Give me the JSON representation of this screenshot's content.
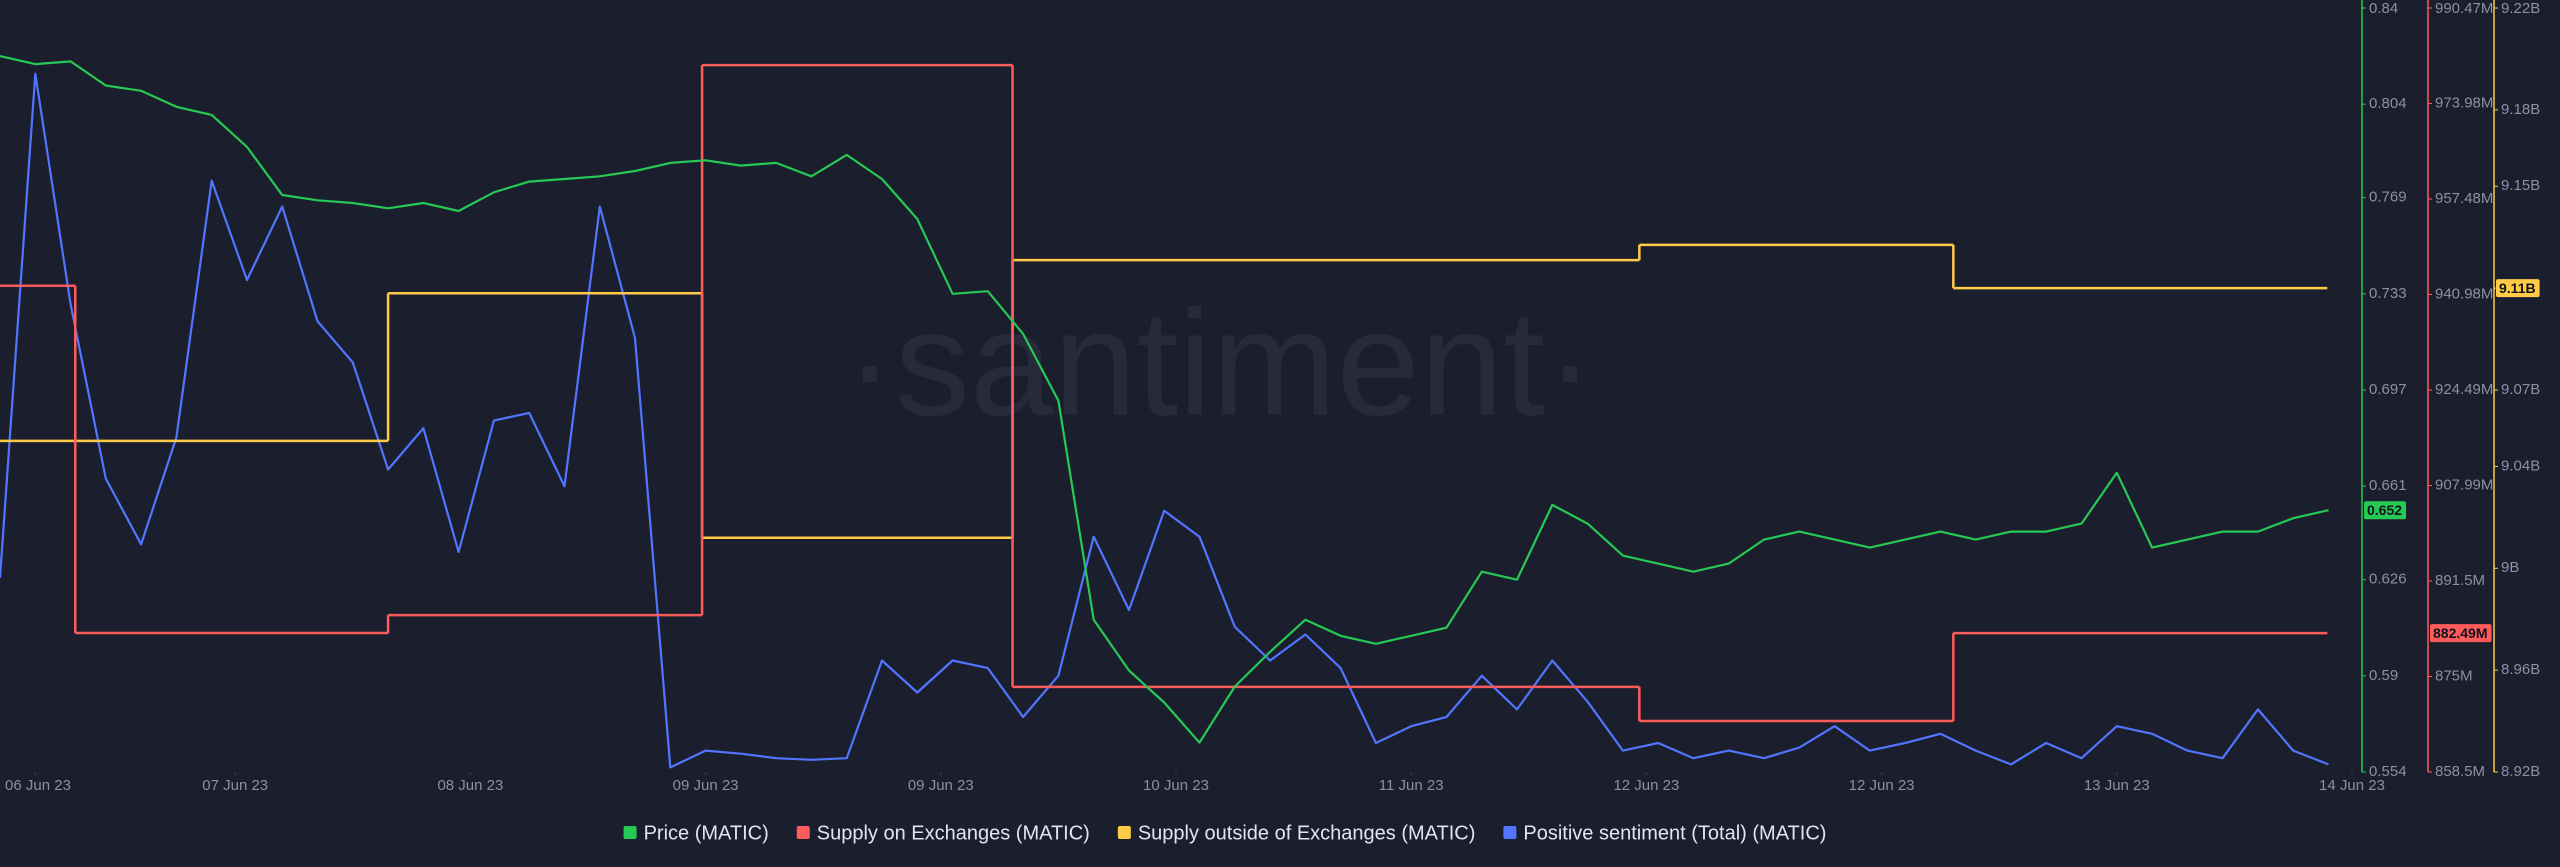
{
  "chart_data": {
    "type": "line",
    "watermark": "·santiment·",
    "xlim": [
      0,
      200
    ],
    "xticks": [
      {
        "value": 3,
        "label": "06 Jun 23"
      },
      {
        "value": 20,
        "label": "07 Jun 23"
      },
      {
        "value": 40,
        "label": "08 Jun 23"
      },
      {
        "value": 60,
        "label": "09 Jun 23"
      },
      {
        "value": 80,
        "label": "09 Jun 23"
      },
      {
        "value": 100,
        "label": "10 Jun 23"
      },
      {
        "value": 120,
        "label": "11 Jun 23"
      },
      {
        "value": 140,
        "label": "12 Jun 23"
      },
      {
        "value": 160,
        "label": "12 Jun 23"
      },
      {
        "value": 180,
        "label": "13 Jun 23"
      },
      {
        "value": 200,
        "label": "14 Jun 23"
      }
    ],
    "x": [
      0,
      3,
      6,
      9,
      12,
      15,
      18,
      21,
      24,
      27,
      30,
      33,
      36,
      39,
      42,
      45,
      48,
      51,
      54,
      57,
      60,
      63,
      66,
      69,
      72,
      75,
      78,
      81,
      84,
      87,
      90,
      93,
      96,
      99,
      102,
      105,
      108,
      111,
      114,
      117,
      120,
      123,
      126,
      129,
      132,
      135,
      138,
      141,
      144,
      147,
      150,
      153,
      156,
      159,
      162,
      165,
      168,
      171,
      174,
      177,
      180,
      183,
      186,
      189,
      192,
      195,
      198
    ],
    "ylim": [
      0.554,
      0.84
    ],
    "yticks": [
      0.554,
      0.59,
      0.626,
      0.661,
      0.697,
      0.733,
      0.769,
      0.804,
      0.84
    ],
    "y2lim": [
      858500000,
      990470000
    ],
    "y2ticks": [
      {
        "value": 858500000,
        "label": "858.5M"
      },
      {
        "value": 875000000,
        "label": "875M"
      },
      {
        "value": 891500000,
        "label": "891.5M"
      },
      {
        "value": 907990000,
        "label": "907.99M"
      },
      {
        "value": 924490000,
        "label": "924.49M"
      },
      {
        "value": 940980000,
        "label": "940.98M"
      },
      {
        "value": 957480000,
        "label": "957.48M"
      },
      {
        "value": 973980000,
        "label": "973.98M"
      },
      {
        "value": 990470000,
        "label": "990.47M"
      }
    ],
    "y3lim": [
      8920000000,
      9220000000
    ],
    "y3ticks": [
      {
        "value": 8920000000,
        "label": "8.92B"
      },
      {
        "value": 8960000000,
        "label": "8.96B"
      },
      {
        "value": 9000000000,
        "label": "9B"
      },
      {
        "value": 9040000000,
        "label": "9.04B"
      },
      {
        "value": 9070000000,
        "label": "9.07B"
      },
      {
        "value": 9110000000,
        "label": "9.11B"
      },
      {
        "value": 9150000000,
        "label": "9.15B"
      },
      {
        "value": 9180000000,
        "label": "9.18B"
      },
      {
        "value": 9220000000,
        "label": "9.22B"
      }
    ],
    "y4lim": [
      0,
      50
    ],
    "series": [
      {
        "name": "Price (MATIC)",
        "color": "#26c953",
        "axis": "y",
        "values": [
          0.822,
          0.819,
          0.82,
          0.811,
          0.809,
          0.803,
          0.8,
          0.788,
          0.77,
          0.768,
          0.767,
          0.765,
          0.767,
          0.764,
          0.771,
          0.775,
          0.776,
          0.777,
          0.779,
          0.782,
          0.783,
          0.781,
          0.782,
          0.777,
          0.785,
          0.776,
          0.761,
          0.733,
          0.734,
          0.718,
          0.693,
          0.611,
          0.592,
          0.58,
          0.565,
          0.586,
          0.599,
          0.611,
          0.605,
          0.602,
          0.605,
          0.608,
          0.629,
          0.626,
          0.654,
          0.647,
          0.635,
          0.632,
          0.629,
          0.632,
          0.641,
          0.644,
          0.641,
          0.638,
          0.641,
          0.644,
          0.641,
          0.644,
          0.644,
          0.647,
          0.666,
          0.638,
          0.641,
          0.644,
          0.644,
          0.649,
          0.652
        ]
      },
      {
        "name": "Supply on Exchanges (MATIC)",
        "color": "#ff5b5b",
        "axis": "y2",
        "step": true,
        "x": [
          0,
          6.4,
          33,
          59.7,
          86.1,
          139.4,
          166.1,
          197.9
        ],
        "values": [
          942500000,
          882500000,
          885600000,
          980600000,
          873200000,
          867300000,
          882490000,
          882490000
        ],
        "value_labels": [
          null,
          null,
          null,
          null,
          null,
          null,
          null,
          "882.49M"
        ]
      },
      {
        "name": "Supply outside of Exchanges (MATIC)",
        "color": "#ffcb47",
        "axis": "y3",
        "step": true,
        "x": [
          0,
          33,
          59.7,
          86.1,
          139.4,
          166.1,
          197.9
        ],
        "values": [
          9050000000,
          9108000000,
          9012000000,
          9121000000,
          9127000000,
          9110000000,
          9110000000
        ],
        "value_labels": [
          null,
          null,
          null,
          null,
          null,
          null,
          "9.11B"
        ]
      },
      {
        "name": "Positive sentiment (Total) (MATIC)",
        "color": "#5275ff",
        "axis": "y4",
        "values": [
          12.7,
          45.7,
          30.6,
          19.2,
          14.9,
          21.9,
          38.7,
          32.2,
          37.0,
          29.5,
          26.8,
          19.8,
          22.5,
          14.4,
          23.0,
          23.5,
          18.7,
          37.0,
          28.4,
          0.3,
          1.4,
          1.2,
          0.9,
          0.8,
          0.9,
          7.3,
          5.2,
          7.3,
          6.8,
          3.6,
          6.3,
          15.4,
          10.6,
          17.1,
          15.4,
          9.5,
          7.3,
          9.0,
          6.8,
          1.9,
          3.0,
          3.6,
          6.3,
          4.1,
          7.3,
          4.6,
          1.4,
          1.9,
          0.9,
          1.4,
          0.9,
          1.6,
          3.0,
          1.4,
          1.9,
          2.5,
          1.4,
          0.5,
          1.9,
          0.9,
          3.0,
          2.5,
          1.4,
          0.9,
          4.1,
          1.4,
          0.5
        ]
      }
    ]
  }
}
